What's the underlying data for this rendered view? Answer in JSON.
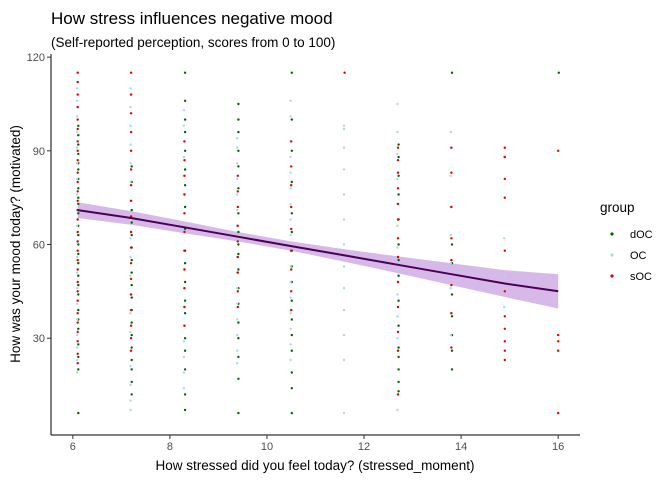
{
  "chart_data": {
    "type": "scatter",
    "title": "How stress influences negative mood",
    "subtitle": "(Self-reported perception, scores from 0 to 100)",
    "xlabel": "How stressed did you feel today? (stressed_moment)",
    "ylabel": "How was your mood today? (motivated)",
    "xlim": [
      5.55,
      16.45
    ],
    "ylim": [
      -1,
      121
    ],
    "x_ticks": [
      6,
      8,
      10,
      12,
      14,
      16
    ],
    "x_tick_labels": [
      "6",
      "8",
      "10",
      "12",
      "14",
      "16"
    ],
    "y_ticks": [
      30,
      60,
      90,
      120
    ],
    "y_tick_labels": [
      "30",
      "60",
      "90",
      "120"
    ],
    "grid": false,
    "legend": {
      "title": "group",
      "position": "right",
      "entries": [
        {
          "label": "dOC",
          "color": "#006400"
        },
        {
          "label": "OC",
          "color": "#add8e6"
        },
        {
          "label": "sOC",
          "color": "#e00000"
        }
      ]
    },
    "x_levels": [
      6.1,
      7.2,
      8.3,
      9.4,
      10.5,
      11.6,
      12.7,
      13.8,
      14.9,
      16.0
    ],
    "series": [
      {
        "name": "dOC",
        "color": "#006400",
        "columns": [
          {
            "x": 6.1,
            "y": [
              6,
              20,
              24,
              28,
              33,
              36,
              39,
              44,
              47,
              50,
              54,
              57,
              60,
              63,
              66,
              70,
              73,
              75,
              78,
              81,
              84,
              86,
              89,
              92,
              95,
              98
            ]
          },
          {
            "x": 7.2,
            "y": [
              12,
              16,
              20,
              23,
              27,
              31,
              35,
              39,
              43,
              47,
              51,
              55,
              59,
              63,
              67,
              71,
              80,
              85
            ]
          },
          {
            "x": 8.3,
            "y": [
              7,
              12,
              20,
              26,
              30,
              38,
              42,
              48,
              54,
              58,
              65,
              72,
              79,
              84,
              90,
              96,
              100,
              106,
              115
            ]
          },
          {
            "x": 9.4,
            "y": [
              6,
              17,
              24,
              30,
              35,
              41,
              46,
              52,
              57,
              60,
              64,
              70,
              78,
              85,
              90,
              96,
              100,
              105
            ]
          },
          {
            "x": 10.5,
            "y": [
              6,
              14,
              19,
              26,
              31,
              36,
              42,
              48,
              53,
              58,
              64,
              70,
              80,
              90,
              100,
              115
            ]
          },
          {
            "x": 12.7,
            "y": [
              13,
              16,
              20,
              24,
              27,
              34,
              42,
              50,
              55,
              60,
              68,
              76,
              82,
              88,
              92
            ]
          },
          {
            "x": 13.8,
            "y": [
              20,
              26,
              31,
              37,
              44,
              54,
              60,
              115
            ]
          },
          {
            "x": 16.0,
            "y": [
              115
            ]
          }
        ]
      },
      {
        "name": "OC",
        "color": "#add8e6",
        "columns": [
          {
            "x": 6.1,
            "y": [
              19,
              23,
              27,
              31,
              36,
              41,
              46,
              51,
              56,
              61,
              66,
              71,
              76,
              81,
              86,
              91,
              96,
              101,
              106,
              110
            ]
          },
          {
            "x": 7.2,
            "y": [
              7,
              10,
              15,
              21,
              26,
              32,
              38,
              44,
              50,
              56,
              62,
              68,
              74,
              80,
              86,
              92,
              98,
              104,
              110
            ]
          },
          {
            "x": 8.3,
            "y": [
              14,
              19,
              24,
              29,
              34,
              40,
              46,
              52,
              58,
              64,
              70,
              76,
              82,
              88,
              93,
              98,
              103
            ]
          },
          {
            "x": 9.4,
            "y": [
              22,
              26,
              31,
              36,
              41,
              46,
              51,
              56,
              61,
              66,
              71,
              76,
              81,
              86,
              91,
              94
            ]
          },
          {
            "x": 10.5,
            "y": [
              23,
              28,
              33,
              38,
              43,
              48,
              53,
              58,
              63,
              68,
              73,
              78,
              83,
              88,
              93,
              101,
              106
            ]
          },
          {
            "x": 11.6,
            "y": [
              6,
              23,
              31,
              39,
              46,
              53,
              60,
              68,
              76,
              84,
              91,
              97,
              98
            ]
          },
          {
            "x": 12.7,
            "y": [
              7,
              30,
              37,
              44,
              52,
              59,
              66,
              73,
              81,
              89,
              96,
              105
            ]
          },
          {
            "x": 13.8,
            "y": [
              31,
              38,
              46,
              54,
              63,
              72,
              82,
              91,
              96
            ]
          },
          {
            "x": 14.9,
            "y": [
              40,
              50,
              62,
              88
            ]
          }
        ]
      },
      {
        "name": "sOC",
        "color": "#e00000",
        "columns": [
          {
            "x": 6.1,
            "y": [
              22,
              25,
              29,
              32,
              35,
              38,
              42,
              45,
              48,
              52,
              55,
              58,
              61,
              64,
              68,
              71,
              74,
              77,
              80,
              83,
              87,
              90,
              93,
              97,
              100,
              104,
              108,
              112,
              115
            ]
          },
          {
            "x": 7.2,
            "y": [
              26,
              30,
              34,
              39,
              44,
              49,
              54,
              59,
              64,
              69,
              74,
              79,
              84,
              90,
              96,
              102,
              108,
              115
            ]
          },
          {
            "x": 8.3,
            "y": [
              34,
              40,
              46,
              52,
              58,
              64,
              70,
              76,
              82,
              87,
              93
            ]
          },
          {
            "x": 9.4,
            "y": [
              40,
              45,
              51,
              56,
              61,
              66,
              72,
              77,
              82
            ]
          },
          {
            "x": 10.5,
            "y": [
              39,
              45,
              52,
              58,
              65,
              72,
              79,
              85,
              93
            ]
          },
          {
            "x": 11.6,
            "y": [
              115
            ]
          },
          {
            "x": 12.7,
            "y": [
              12,
              26,
              32,
              40,
              48,
              56,
              62,
              68,
              73,
              78,
              83,
              87,
              91
            ]
          },
          {
            "x": 13.8,
            "y": [
              27,
              38,
              47,
              55,
              62,
              72,
              83,
              91
            ]
          },
          {
            "x": 14.9,
            "y": [
              23,
              26,
              29,
              33,
              37,
              45,
              58,
              75,
              81,
              88,
              91
            ]
          },
          {
            "x": 16.0,
            "y": [
              6,
              26,
              29,
              31,
              90
            ]
          }
        ]
      }
    ],
    "trend": {
      "method": "lm",
      "line_color": "#4b0055",
      "band_color": "#c8a2e0",
      "x": [
        6.1,
        7.2,
        8.3,
        9.4,
        10.5,
        11.6,
        12.7,
        13.8,
        14.9,
        16.0
      ],
      "y": [
        71,
        68.5,
        65.5,
        62.5,
        59.5,
        56.5,
        53.5,
        50.5,
        47.5,
        45
      ],
      "lower": [
        68.5,
        66.3,
        63.6,
        61.0,
        58.0,
        54.5,
        50.8,
        47.0,
        43.2,
        39.5
      ],
      "upper": [
        73.5,
        70.7,
        67.4,
        64.0,
        61.0,
        58.5,
        56.2,
        54.0,
        51.8,
        50.5
      ]
    }
  }
}
